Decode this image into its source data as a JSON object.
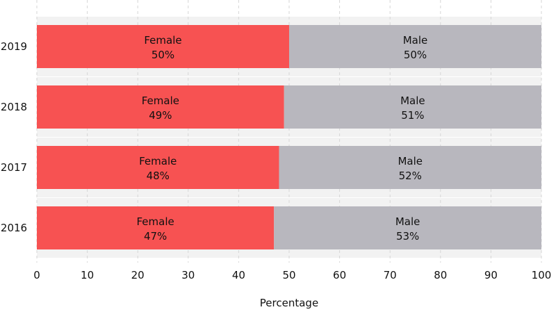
{
  "chart_data": {
    "type": "bar",
    "orientation": "horizontal",
    "stacked": true,
    "categories": [
      "2019",
      "2018",
      "2017",
      "2016"
    ],
    "series": [
      {
        "name": "Female",
        "values": [
          50,
          49,
          48,
          47
        ],
        "color": "#f75252",
        "labels": [
          "50%",
          "49%",
          "48%",
          "47%"
        ]
      },
      {
        "name": "Male",
        "values": [
          50,
          51,
          52,
          53
        ],
        "color": "#b8b7be",
        "labels": [
          "50%",
          "51%",
          "52%",
          "53%"
        ]
      }
    ],
    "xlabel": "Percentage",
    "ylabel": "",
    "xlim": [
      0,
      100
    ],
    "xticks": [
      0,
      10,
      20,
      30,
      40,
      50,
      60,
      70,
      80,
      90,
      100
    ],
    "grid": true,
    "legend": "none"
  }
}
